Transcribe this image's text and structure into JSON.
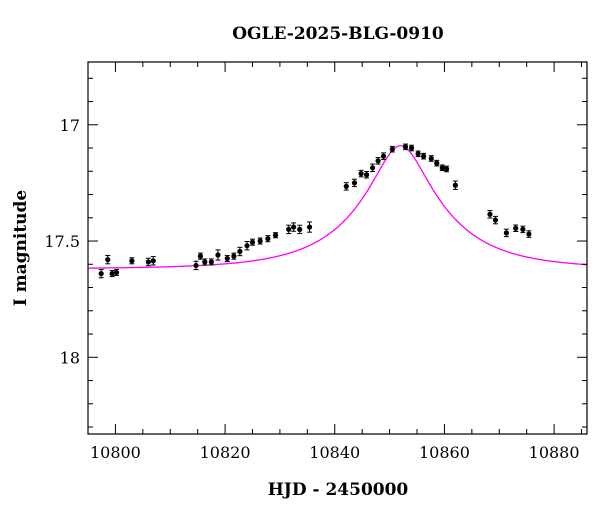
{
  "chart_data": {
    "type": "scatter",
    "title": "OGLE-2025-BLG-0910",
    "xlabel": "HJD - 2450000",
    "ylabel": "I magnitude",
    "xlim": [
      10795,
      10886
    ],
    "ylim": [
      18.33,
      16.73
    ],
    "y_inverted": true,
    "x_major_ticks": [
      10800,
      10820,
      10840,
      10860,
      10880
    ],
    "x_minor_step": 5,
    "y_major_ticks": [
      17,
      17.5,
      18
    ],
    "y_major_tick_labels": [
      "17",
      "17.5",
      "18"
    ],
    "y_minor_step": 0.1,
    "grid": false,
    "legend": "none",
    "colors": {
      "data": "#000000",
      "model": "#ff00ff",
      "axes": "#000000"
    },
    "series": [
      {
        "kind": "points_with_errorbars",
        "x": [
          10797.4,
          10798.6,
          10799.4,
          10800.2,
          10803.0,
          10806.0,
          10806.9,
          10814.7,
          10815.5,
          10816.3,
          10817.5,
          10818.7,
          10820.4,
          10821.6,
          10822.7,
          10824.0,
          10825.0,
          10826.4,
          10827.8,
          10829.2,
          10831.6,
          10832.5,
          10833.6,
          10835.4,
          10842.1,
          10843.6,
          10844.8,
          10845.8,
          10846.9,
          10847.9,
          10848.9,
          10850.5,
          10852.9,
          10854.0,
          10855.2,
          10856.2,
          10857.6,
          10858.6,
          10859.6,
          10860.4,
          10862.0,
          10868.3,
          10869.3,
          10871.3,
          10873.0,
          10874.3,
          10875.4
        ],
        "y": [
          17.64,
          17.58,
          17.64,
          17.635,
          17.585,
          17.59,
          17.585,
          17.605,
          17.565,
          17.59,
          17.59,
          17.56,
          17.575,
          17.565,
          17.545,
          17.52,
          17.505,
          17.5,
          17.49,
          17.475,
          17.45,
          17.44,
          17.45,
          17.44,
          17.265,
          17.25,
          17.21,
          17.215,
          17.185,
          17.155,
          17.135,
          17.105,
          17.095,
          17.1,
          17.125,
          17.135,
          17.145,
          17.165,
          17.185,
          17.19,
          17.26,
          17.385,
          17.41,
          17.465,
          17.445,
          17.45,
          17.47
        ],
        "err": [
          0.018,
          0.018,
          0.013,
          0.013,
          0.013,
          0.016,
          0.018,
          0.018,
          0.013,
          0.013,
          0.013,
          0.022,
          0.013,
          0.013,
          0.018,
          0.018,
          0.013,
          0.013,
          0.013,
          0.011,
          0.018,
          0.018,
          0.018,
          0.022,
          0.016,
          0.016,
          0.014,
          0.014,
          0.016,
          0.014,
          0.014,
          0.012,
          0.012,
          0.012,
          0.012,
          0.012,
          0.012,
          0.012,
          0.012,
          0.012,
          0.018,
          0.016,
          0.016,
          0.016,
          0.014,
          0.014,
          0.014
        ]
      },
      {
        "kind": "model_curve",
        "t0": 10852.0,
        "u0": 0.29,
        "tE": 15.5,
        "base_mag": 17.62,
        "amp_mag_at_peak": 0.53
      }
    ]
  }
}
